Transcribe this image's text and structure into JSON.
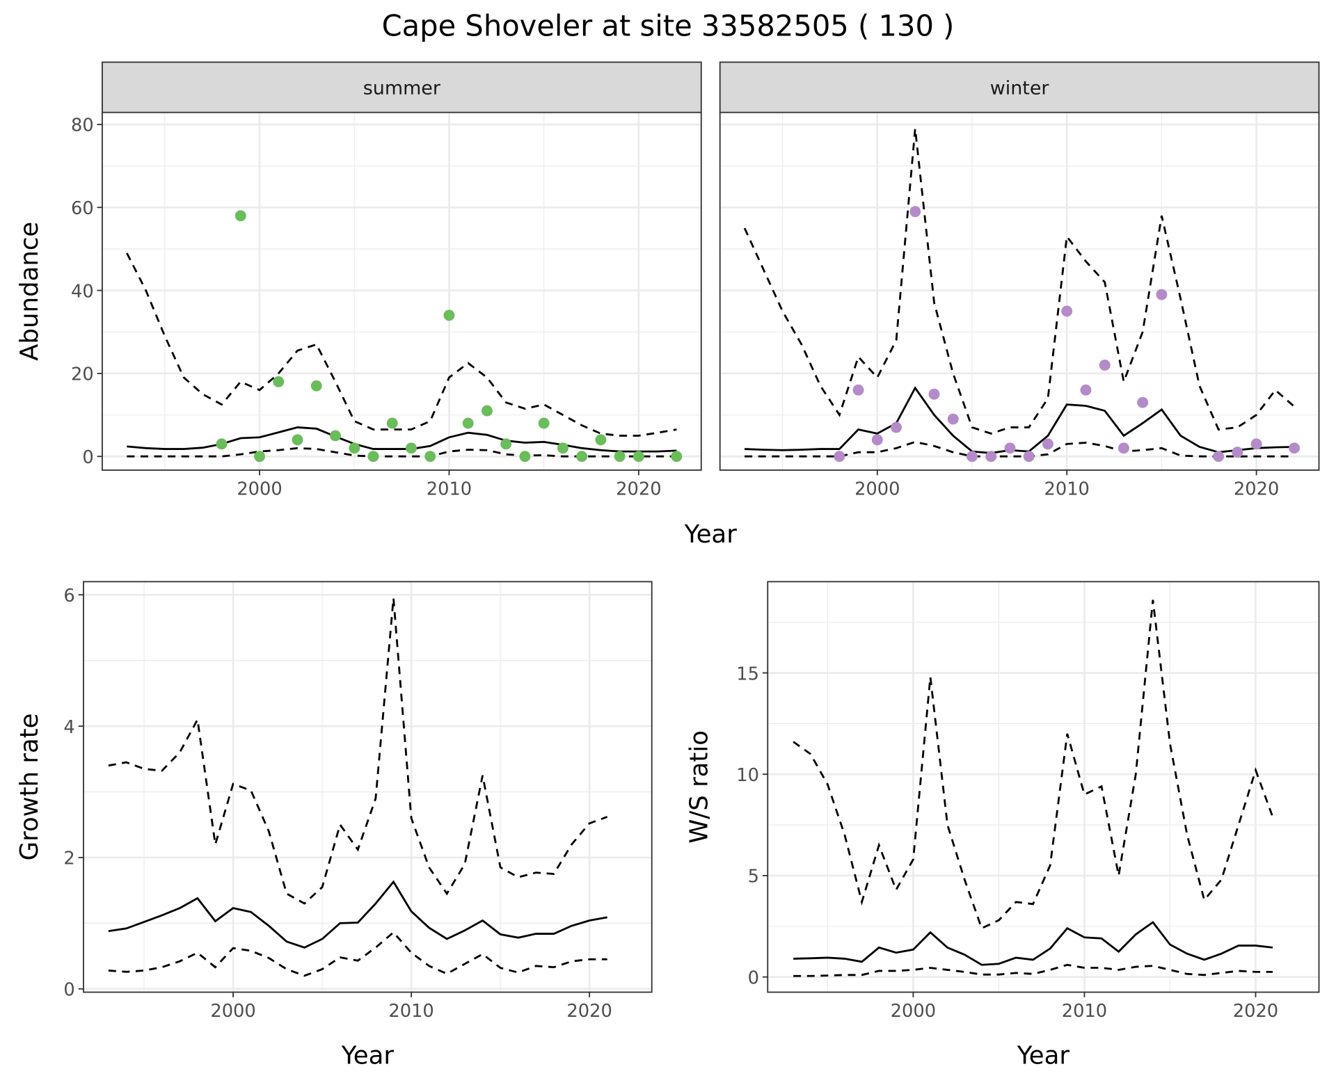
{
  "title": "Cape Shoveler at site 33582505 ( 130 )",
  "colors": {
    "summer": "#6abd5a",
    "winter": "#b48bc8",
    "line": "#000000",
    "strip": "#d9d9d9",
    "grid": "#ebebeb"
  },
  "chart_data": [
    {
      "type": "line+scatter",
      "facet": "summer",
      "xlabel": "Year",
      "ylabel": "Abundance",
      "xlim": [
        1991.7,
        2023.3
      ],
      "ylim": [
        -3.3,
        82.9
      ],
      "xticks": [
        2000,
        2010,
        2020
      ],
      "yticks": [
        0,
        20,
        40,
        60,
        80
      ],
      "grid": true,
      "points": {
        "x": [
          1998,
          1999,
          2000,
          2001,
          2002,
          2003,
          2004,
          2005,
          2006,
          2007,
          2008,
          2009,
          2010,
          2011,
          2012,
          2013,
          2014,
          2015,
          2016,
          2017,
          2018,
          2019,
          2020,
          2022
        ],
        "y": [
          3,
          58,
          0,
          18,
          4,
          17,
          5,
          2,
          0,
          8,
          2,
          0,
          34,
          8,
          11,
          3,
          0,
          8,
          2,
          0,
          4,
          0,
          0,
          0
        ]
      },
      "years": [
        1993,
        1994,
        1995,
        1996,
        1997,
        1998,
        1999,
        2000,
        2001,
        2002,
        2003,
        2004,
        2005,
        2006,
        2007,
        2008,
        2009,
        2010,
        2011,
        2012,
        2013,
        2014,
        2015,
        2016,
        2017,
        2018,
        2019,
        2020,
        2021,
        2022
      ],
      "mean": [
        2.4,
        2,
        1.8,
        1.8,
        2.1,
        3,
        4.4,
        4.6,
        5.8,
        7,
        6.7,
        4.8,
        3,
        1.8,
        1.8,
        1.8,
        2.5,
        4.6,
        5.7,
        5.2,
        3.8,
        3.3,
        3.5,
        2.8,
        2,
        1.5,
        1.2,
        1.2,
        1.2,
        1.4
      ],
      "upper": [
        49,
        40,
        29,
        19,
        15,
        12.5,
        18,
        16,
        20,
        25.5,
        27,
        18,
        8.5,
        6.5,
        6.5,
        6.5,
        8.5,
        19,
        22.5,
        19,
        13,
        11.5,
        12.5,
        10,
        7.5,
        5.5,
        5,
        5,
        5.7,
        6.5
      ],
      "lower": [
        0,
        0,
        0,
        0,
        0,
        0,
        0.5,
        1.2,
        1.5,
        2,
        1.8,
        1,
        0.2,
        0,
        0,
        0,
        0,
        1.2,
        1.6,
        1.5,
        0.5,
        0.2,
        0.3,
        0,
        0,
        0,
        0,
        0,
        0,
        0
      ]
    },
    {
      "type": "line+scatter",
      "facet": "winter",
      "xlabel": "Year",
      "ylabel": "Abundance",
      "xlim": [
        1991.7,
        2023.3
      ],
      "ylim": [
        -3.3,
        82.9
      ],
      "xticks": [
        2000,
        2010,
        2020
      ],
      "yticks": [
        0,
        20,
        40,
        60,
        80
      ],
      "grid": true,
      "points": {
        "x": [
          1998,
          1999,
          2000,
          2001,
          2002,
          2003,
          2004,
          2005,
          2006,
          2007,
          2008,
          2009,
          2010,
          2011,
          2012,
          2013,
          2014,
          2015,
          2018,
          2019,
          2020,
          2022
        ],
        "y": [
          0,
          16,
          4,
          7,
          59,
          15,
          9,
          0,
          0,
          2,
          0,
          3,
          35,
          16,
          22,
          2,
          13,
          39,
          0,
          1,
          3,
          2
        ]
      },
      "years": [
        1993,
        1994,
        1995,
        1996,
        1997,
        1998,
        1999,
        2000,
        2001,
        2002,
        2003,
        2004,
        2005,
        2006,
        2007,
        2008,
        2009,
        2010,
        2011,
        2012,
        2013,
        2014,
        2015,
        2016,
        2017,
        2018,
        2019,
        2020,
        2021,
        2022
      ],
      "mean": [
        1.8,
        1.6,
        1.5,
        1.6,
        1.8,
        1.8,
        6.5,
        5.5,
        8,
        16.5,
        10,
        5,
        1.2,
        0.8,
        1.5,
        1.2,
        5,
        12.5,
        12.2,
        11,
        5,
        8,
        11.3,
        5,
        2.3,
        1,
        1.5,
        2,
        2.2,
        2.3
      ],
      "upper": [
        55,
        45,
        35,
        27,
        17,
        10,
        24,
        19,
        28,
        79,
        37,
        20,
        7,
        5.5,
        7,
        7,
        14,
        53,
        47,
        42,
        18,
        30,
        58,
        38,
        17,
        6.5,
        7,
        10,
        16,
        12
      ],
      "lower": [
        0,
        0,
        0,
        0,
        0,
        0,
        1,
        1,
        2,
        3.5,
        2.5,
        1,
        0,
        0,
        0,
        0,
        0.5,
        3,
        3.3,
        2.5,
        1.2,
        1.5,
        2,
        0.2,
        0,
        0,
        0,
        0,
        0,
        0
      ]
    },
    {
      "type": "line",
      "xlabel": "Year",
      "ylabel": "Growth rate",
      "xlim": [
        1991.6,
        2023.5
      ],
      "ylim": [
        -0.05,
        6.2
      ],
      "xticks": [
        2000,
        2010,
        2020
      ],
      "yticks": [
        0,
        2,
        4,
        6
      ],
      "grid": true,
      "years": [
        1993,
        1994,
        1995,
        1996,
        1997,
        1998,
        1999,
        2000,
        2001,
        2002,
        2003,
        2004,
        2005,
        2006,
        2007,
        2008,
        2009,
        2010,
        2011,
        2012,
        2013,
        2014,
        2015,
        2016,
        2017,
        2018,
        2019,
        2020,
        2021
      ],
      "mean": [
        0.88,
        0.92,
        1.02,
        1.12,
        1.23,
        1.38,
        1.03,
        1.23,
        1.17,
        0.96,
        0.72,
        0.63,
        0.76,
        1.0,
        1.01,
        1.3,
        1.63,
        1.18,
        0.93,
        0.76,
        0.89,
        1.04,
        0.83,
        0.78,
        0.84,
        0.84,
        0.96,
        1.04,
        1.09
      ],
      "upper": [
        3.4,
        3.45,
        3.35,
        3.32,
        3.6,
        4.1,
        2.2,
        3.12,
        3.02,
        2.4,
        1.45,
        1.3,
        1.55,
        2.5,
        2.12,
        2.9,
        5.95,
        2.6,
        1.85,
        1.45,
        1.9,
        3.25,
        1.85,
        1.7,
        1.77,
        1.75,
        2.2,
        2.52,
        2.62
      ],
      "lower": [
        0.28,
        0.26,
        0.28,
        0.33,
        0.42,
        0.55,
        0.33,
        0.62,
        0.58,
        0.47,
        0.3,
        0.2,
        0.3,
        0.48,
        0.43,
        0.63,
        0.86,
        0.55,
        0.35,
        0.23,
        0.38,
        0.53,
        0.32,
        0.25,
        0.35,
        0.33,
        0.42,
        0.45,
        0.45
      ]
    },
    {
      "type": "line",
      "xlabel": "Year",
      "ylabel": "W/S ratio",
      "xlim": [
        1991.5,
        2023.7
      ],
      "ylim": [
        -0.75,
        19.5
      ],
      "xticks": [
        2000,
        2010,
        2020
      ],
      "yticks": [
        0,
        5,
        10,
        15
      ],
      "grid": true,
      "years": [
        1993,
        1994,
        1995,
        1996,
        1997,
        1998,
        1999,
        2000,
        2001,
        2002,
        2003,
        2004,
        2005,
        2006,
        2007,
        2008,
        2009,
        2010,
        2011,
        2012,
        2013,
        2014,
        2015,
        2016,
        2017,
        2018,
        2019,
        2020,
        2021
      ],
      "mean": [
        0.9,
        0.92,
        0.95,
        0.9,
        0.75,
        1.45,
        1.2,
        1.35,
        2.2,
        1.45,
        1.1,
        0.6,
        0.65,
        0.95,
        0.85,
        1.4,
        2.4,
        1.95,
        1.9,
        1.25,
        2.1,
        2.7,
        1.6,
        1.15,
        0.85,
        1.15,
        1.55,
        1.55,
        1.45
      ],
      "upper": [
        11.6,
        11,
        9.5,
        7,
        3.7,
        6.5,
        4.3,
        5.8,
        14.8,
        7.5,
        4.8,
        2.4,
        2.8,
        3.7,
        3.6,
        5.5,
        12,
        9,
        9.4,
        5,
        10,
        18.6,
        11.5,
        7,
        3.8,
        4.8,
        7.5,
        10.2,
        7.9
      ],
      "lower": [
        0.05,
        0.05,
        0.07,
        0.1,
        0.1,
        0.3,
        0.3,
        0.35,
        0.45,
        0.35,
        0.25,
        0.12,
        0.12,
        0.2,
        0.15,
        0.35,
        0.6,
        0.45,
        0.45,
        0.35,
        0.5,
        0.55,
        0.35,
        0.15,
        0.1,
        0.2,
        0.3,
        0.25,
        0.25
      ]
    }
  ]
}
